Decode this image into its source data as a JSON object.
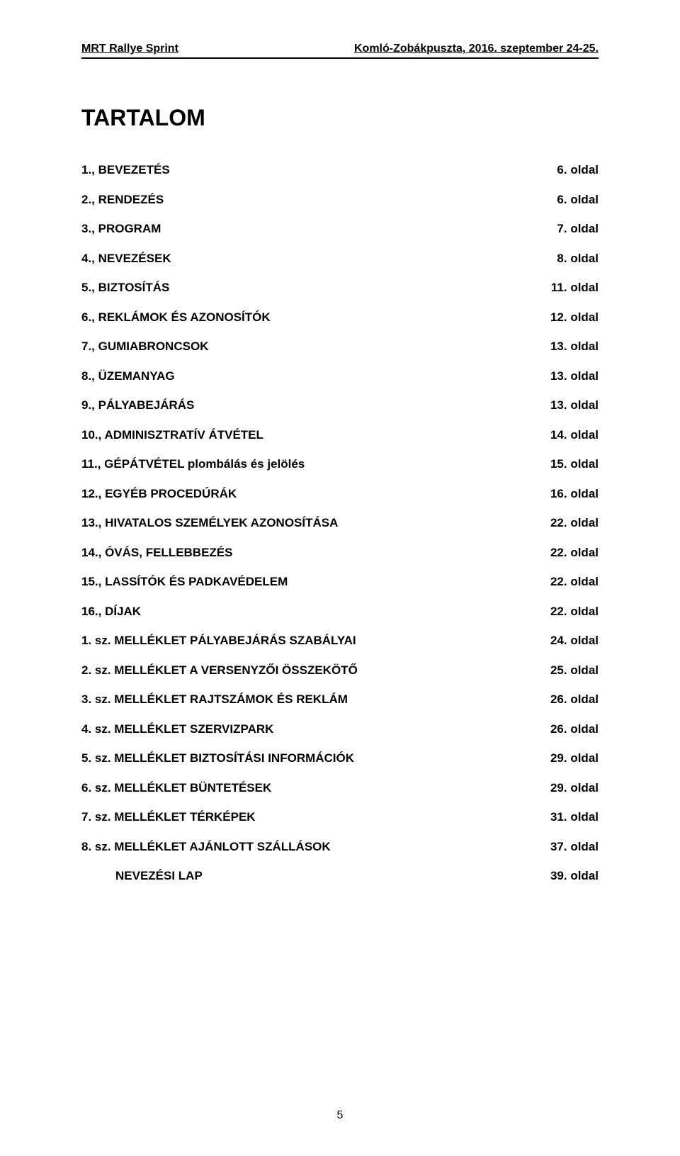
{
  "header": {
    "left": "MRT Rallye Sprint",
    "right": "Komló-Zobákpuszta, 2016. szeptember 24-25."
  },
  "title": "TARTALOM",
  "toc": [
    {
      "label": "1., BEVEZETÉS",
      "page": "6. oldal",
      "indent": false
    },
    {
      "label": "2., RENDEZÉS",
      "page": "6. oldal",
      "indent": false
    },
    {
      "label": "3., PROGRAM",
      "page": "7. oldal",
      "indent": false
    },
    {
      "label": "4., NEVEZÉSEK",
      "page": "8. oldal",
      "indent": false
    },
    {
      "label": "5., BIZTOSÍTÁS",
      "page": "11. oldal",
      "indent": false
    },
    {
      "label": "6., REKLÁMOK ÉS AZONOSÍTÓK",
      "page": "12. oldal",
      "indent": false
    },
    {
      "label": "7., GUMIABRONCSOK",
      "page": "13. oldal",
      "indent": false
    },
    {
      "label": "8., ÜZEMANYAG",
      "page": "13. oldal",
      "indent": false
    },
    {
      "label": "9., PÁLYABEJÁRÁS",
      "page": "13. oldal",
      "indent": false
    },
    {
      "label": "10., ADMINISZTRATÍV ÁTVÉTEL",
      "page": "14. oldal",
      "indent": false
    },
    {
      "label": "11., GÉPÁTVÉTEL plombálás és jelölés",
      "page": "15. oldal",
      "indent": false
    },
    {
      "label": "12., EGYÉB PROCEDÚRÁK",
      "page": "16. oldal",
      "indent": false
    },
    {
      "label": "13., HIVATALOS SZEMÉLYEK AZONOSÍTÁSA",
      "page": "22. oldal",
      "indent": false
    },
    {
      "label": "14., ÓVÁS, FELLEBBEZÉS",
      "page": "22. oldal",
      "indent": false
    },
    {
      "label": "15., LASSÍTÓK ÉS PADKAVÉDELEM",
      "page": "22. oldal",
      "indent": false
    },
    {
      "label": "16., DÍJAK",
      "page": "22. oldal",
      "indent": false
    },
    {
      "label": "1. sz. MELLÉKLET PÁLYABEJÁRÁS SZABÁLYAI",
      "page": "24. oldal",
      "indent": false
    },
    {
      "label": "2. sz. MELLÉKLET A VERSENYZŐI ÖSSZEKÖTŐ",
      "page": "25. oldal",
      "indent": false
    },
    {
      "label": "3. sz. MELLÉKLET RAJTSZÁMOK ÉS REKLÁM",
      "page": "26. oldal",
      "indent": false
    },
    {
      "label": "4. sz. MELLÉKLET SZERVIZPARK",
      "page": "26. oldal",
      "indent": false
    },
    {
      "label": "5. sz. MELLÉKLET BIZTOSÍTÁSI INFORMÁCIÓK",
      "page": "29. oldal",
      "indent": false
    },
    {
      "label": "6. sz. MELLÉKLET BÜNTETÉSEK",
      "page": "29. oldal",
      "indent": false
    },
    {
      "label": "7. sz. MELLÉKLET TÉRKÉPEK",
      "page": "31. oldal",
      "indent": false
    },
    {
      "label": "8. sz. MELLÉKLET AJÁNLOTT SZÁLLÁSOK",
      "page": "37. oldal",
      "indent": false
    },
    {
      "label": "NEVEZÉSI LAP",
      "page": "39. oldal",
      "indent": true
    }
  ],
  "pageNumber": "5"
}
